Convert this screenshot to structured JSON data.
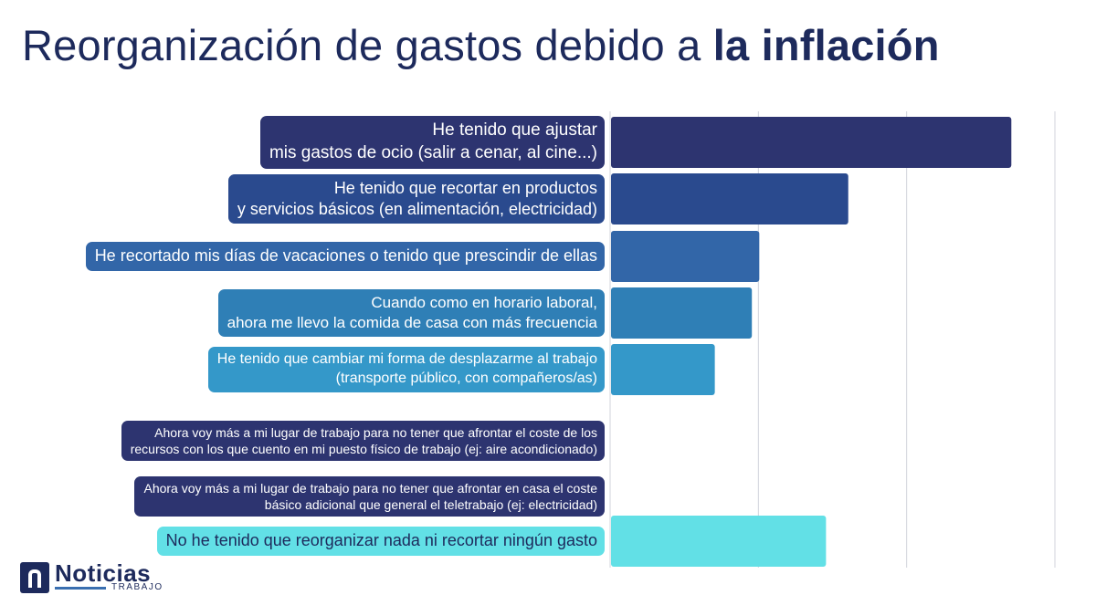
{
  "chart_data": {
    "type": "bar",
    "orientation": "horizontal",
    "title_regular": "Reorganización de gastos debido a ",
    "title_bold": "la inflación",
    "xlim": [
      0,
      30
    ],
    "gridlines": [
      10,
      20,
      30
    ],
    "grid": true,
    "categories": [
      {
        "lines": [
          "He tenido que ajustar",
          "mis gastos de ocio (salir a cenar, al cine...)"
        ],
        "value": 27,
        "color": "#2d3470"
      },
      {
        "lines": [
          "He tenido que recortar en productos",
          "y servicios básicos (en alimentación, electricidad)"
        ],
        "value": 16,
        "color": "#2a4a8e"
      },
      {
        "lines": [
          "He recortado mis días de vacaciones o tenido que prescindir de ellas"
        ],
        "value": 10,
        "color": "#3266a8"
      },
      {
        "lines": [
          "Cuando como en horario laboral,",
          "ahora me llevo la comida de casa con más frecuencia"
        ],
        "value": 9.5,
        "color": "#2f7fb6"
      },
      {
        "lines": [
          "He tenido que cambiar mi forma de desplazarme al trabajo",
          "(transporte público, con compañeros/as)"
        ],
        "value": 7,
        "color": "#3498c9"
      },
      {
        "lines": [
          "Ahora voy más a mi lugar de trabajo para no tener que afrontar el coste de los",
          "recursos con los que cuento en mi puesto físico de trabajo (ej: aire acondicionado)"
        ],
        "value": 0,
        "color": "#2d3470"
      },
      {
        "lines": [
          "Ahora voy más a mi lugar de trabajo para no tener que afrontar en casa el coste",
          "básico adicional que general el teletrabajo (ej: electricidad)"
        ],
        "value": 0,
        "color": "#2d3470"
      },
      {
        "lines": [
          "No he tenido que reorganizar nada ni recortar ningún gasto"
        ],
        "value": 14.5,
        "color": "#62e0e6"
      }
    ]
  },
  "logo": {
    "name": "Noticias",
    "sub": "TRABAJO"
  }
}
